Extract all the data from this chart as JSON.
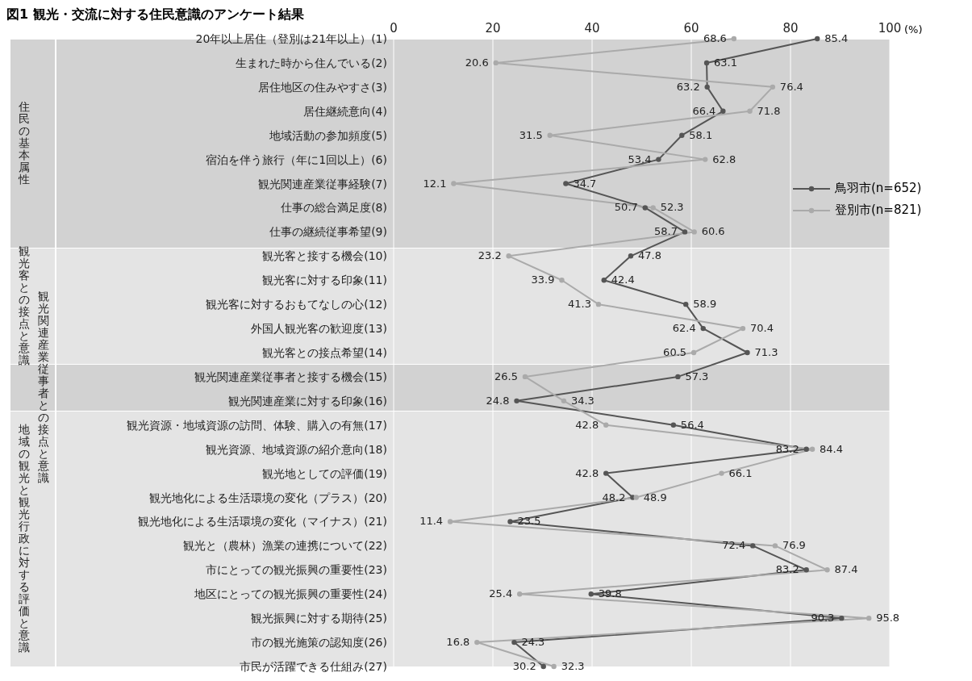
{
  "chart_data": {
    "type": "line",
    "title": "図1 観光・交流に対する住民意識のアンケート結果",
    "xlabel": "(%)",
    "orientation": "horizontal",
    "categories": [
      "20年以上居住（登別は21年以上）(1)",
      "生まれた時から住んでいる(2)",
      "居住地区の住みやすさ(3)",
      "居住継続意向(4)",
      "地域活動の参加頻度(5)",
      "宿泊を伴う旅行（年に1回以上）(6)",
      "観光関連産業従事経験(7)",
      "仕事の総合満足度(8)",
      "仕事の継続従事希望(9)",
      "観光客と接する機会(10)",
      "観光客に対する印象(11)",
      "観光客に対するおもてなしの心(12)",
      "外国人観光客の歓迎度(13)",
      "観光客との接点希望(14)",
      "観光関連産業従事者と接する機会(15)",
      "観光関連産業に対する印象(16)",
      "観光資源・地域資源の訪問、体験、購入の有無(17)",
      "観光資源、地域資源の紹介意向(18)",
      "観光地としての評価(19)",
      "観光地化による生活環境の変化（プラス）(20)",
      "観光地化による生活環境の変化（マイナス）(21)",
      "観光と（農林）漁業の連携について(22)",
      "市にとっての観光振興の重要性(23)",
      "地区にとっての観光振興の重要性(24)",
      "観光振興に対する期待(25)",
      "市の観光施策の認知度(26)",
      "市民が活躍できる仕組み(27)"
    ],
    "series": [
      {
        "name": "鳥羽市(n=652)",
        "color": "#555555",
        "values": [
          85.4,
          63.1,
          63.2,
          66.4,
          58.1,
          53.4,
          34.7,
          50.7,
          58.7,
          47.8,
          42.4,
          58.9,
          62.4,
          71.3,
          57.3,
          24.8,
          56.4,
          83.2,
          42.8,
          48.2,
          23.5,
          72.4,
          83.2,
          39.8,
          90.3,
          24.3,
          30.2
        ]
      },
      {
        "name": "登別市(n=821)",
        "color": "#aaaaaa",
        "values": [
          68.6,
          20.6,
          76.4,
          71.8,
          31.5,
          62.8,
          12.1,
          52.3,
          60.6,
          23.2,
          33.9,
          41.3,
          70.4,
          60.5,
          26.5,
          34.3,
          42.8,
          84.4,
          66.1,
          48.9,
          11.4,
          76.9,
          87.4,
          25.4,
          95.8,
          16.8,
          32.3
        ]
      }
    ],
    "xlim": [
      0,
      100
    ],
    "xticks": [
      0,
      20,
      40,
      60,
      80,
      100
    ],
    "bands": [
      {
        "axis": "y",
        "from": "20年以上居住（登別は21年以上）(1)",
        "to": "仕事の継続従事希望(9)",
        "label": "住民の基本属性",
        "color": "#d2d2d2"
      },
      {
        "axis": "y",
        "from": "観光客と接する機会(10)",
        "to": "観光客との接点希望(14)",
        "label": "観光客との接点と意識",
        "color": "#e4e4e4"
      },
      {
        "axis": "y",
        "from": "観光関連産業従事者と接する機会(15)",
        "to": "観光関連産業に対する印象(16)",
        "label": "観光関連産業従事者との接点と意識",
        "color": "#d2d2d2"
      },
      {
        "axis": "y",
        "from": "観光資源・地域資源の訪問、体験、購入の有無(17)",
        "to": "市民が活躍できる仕組み(27)",
        "label": "地域の観光と観光行政に対する評価と意識",
        "color": "#e4e4e4"
      }
    ],
    "grid": "x",
    "legend": "right",
    "marker": "circle",
    "line_style": "solid",
    "data_labels": true
  }
}
